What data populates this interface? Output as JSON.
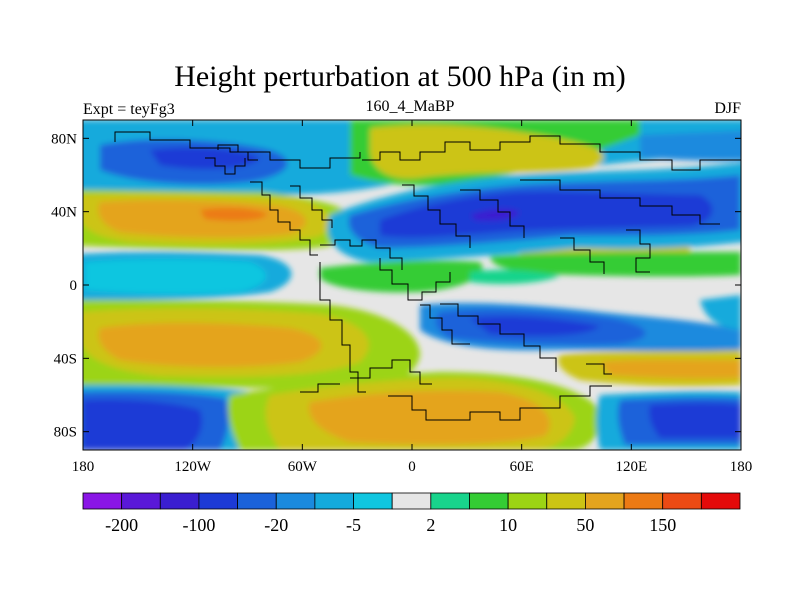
{
  "header": {
    "title": "Height perturbation at 500 hPa (in m)",
    "left": "Expt = teyFg3",
    "center": "160_4_MaBP",
    "right": "DJF"
  },
  "chart_data": {
    "type": "heatmap",
    "title": "Height perturbation at 500 hPa (in m)",
    "subtitle_left": "Expt = teyFg3",
    "subtitle_center": "160_4_MaBP",
    "subtitle_right": "DJF",
    "xlabel": "",
    "ylabel": "",
    "xlim": [
      -180,
      180
    ],
    "ylim": [
      -90,
      90
    ],
    "x_ticks": [
      {
        "value": -180,
        "label": "180"
      },
      {
        "value": -120,
        "label": "120W"
      },
      {
        "value": -60,
        "label": "60W"
      },
      {
        "value": 0,
        "label": "0"
      },
      {
        "value": 60,
        "label": "60E"
      },
      {
        "value": 120,
        "label": "120E"
      },
      {
        "value": 180,
        "label": "180"
      }
    ],
    "y_ticks": [
      {
        "value": 80,
        "label": "80N"
      },
      {
        "value": 40,
        "label": "40N"
      },
      {
        "value": 0,
        "label": "0"
      },
      {
        "value": -40,
        "label": "40S"
      },
      {
        "value": -80,
        "label": "80S"
      }
    ],
    "colorbar": {
      "levels": [
        -200,
        -150,
        -100,
        -50,
        -20,
        -10,
        -5,
        -2,
        2,
        5,
        10,
        20,
        50,
        100,
        150,
        200
      ],
      "labeled": [
        {
          "index": 1,
          "label": "-200"
        },
        {
          "index": 3,
          "label": "-100"
        },
        {
          "index": 5,
          "label": "-20"
        },
        {
          "index": 7,
          "label": "-5"
        },
        {
          "index": 9,
          "label": "2"
        },
        {
          "index": 11,
          "label": "10"
        },
        {
          "index": 13,
          "label": "50"
        },
        {
          "index": 15,
          "label": "150"
        }
      ],
      "colors": [
        "#8a16e6",
        "#5a18d8",
        "#3a1ed0",
        "#1c3ad6",
        "#1a62da",
        "#1a8ade",
        "#14aadc",
        "#10c6e0",
        "#e6e6e6",
        "#18d48c",
        "#34cc34",
        "#9cd414",
        "#ccc414",
        "#e4a41e",
        "#ec7a14",
        "#ec4a14",
        "#e40a0a"
      ]
    },
    "features": [
      {
        "name": "NH positive belt",
        "lat": 40,
        "note": "large positive anomaly (~50-100 m) over Pacific/N. America"
      },
      {
        "name": "NH negative belt",
        "lat": 40,
        "note": "negative anomaly (~-50 to -100 m) over Africa-Eurasia"
      },
      {
        "name": "SH positive lobe",
        "lat": -65,
        "note": "positive anomaly (~50 m) south of Africa/Atlantic"
      },
      {
        "name": "SH negative lobes",
        "lat": -70,
        "note": "negative anomaly (~-50 m) over Pacific and east of 120E"
      }
    ]
  }
}
